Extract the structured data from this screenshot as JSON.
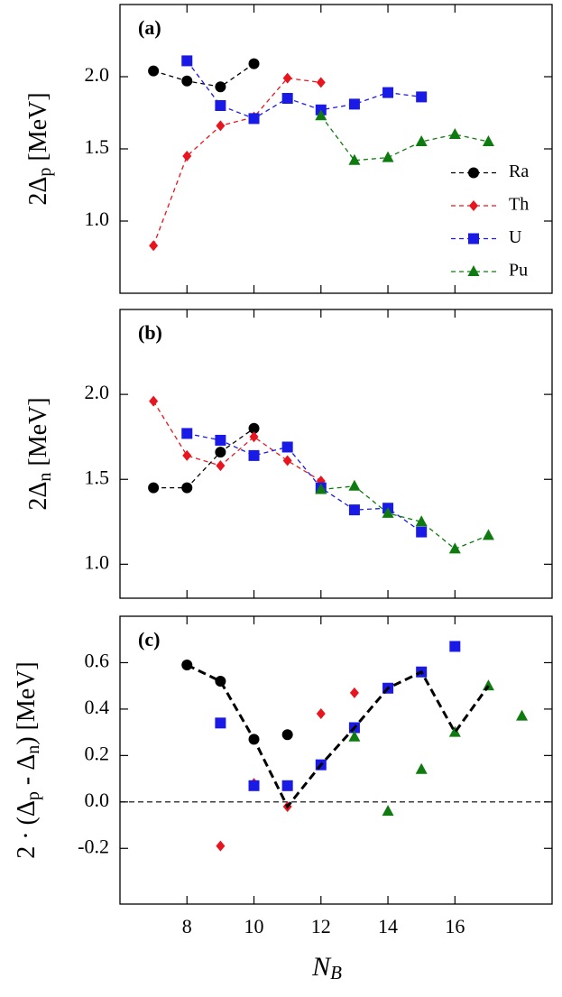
{
  "chart_data": [
    {
      "type": "line",
      "label": "(a)",
      "ylabel": [
        "2Δ",
        "p",
        " [MeV]"
      ],
      "xlim": [
        6,
        18.9
      ],
      "xticks": [
        8,
        10,
        12,
        14,
        16
      ],
      "tick_labels": false,
      "ylim": [
        0.5,
        2.5
      ],
      "yticks": [
        {
          "value": 1,
          "label": "1.0"
        },
        1.5,
        {
          "value": 2,
          "label": "2.0"
        }
      ],
      "legend": "lower right",
      "series": [
        {
          "name": "Ra",
          "color": "#000000",
          "marker": "circle",
          "line": "dashed",
          "x": [
            7,
            8,
            9,
            10
          ],
          "values": [
            2.04,
            1.97,
            1.93,
            2.09
          ]
        },
        {
          "name": "Th",
          "color": "#e8141e",
          "marker": "diamond",
          "line": "dashed",
          "x": [
            7,
            8,
            9,
            10,
            11,
            12
          ],
          "values": [
            0.83,
            1.45,
            1.66,
            1.72,
            1.99,
            1.96
          ]
        },
        {
          "name": "U",
          "color": "#1a1ae6",
          "marker": "square",
          "line": "dashed",
          "x": [
            8,
            9,
            10,
            11,
            12,
            13,
            14,
            15
          ],
          "values": [
            2.11,
            1.8,
            1.71,
            1.85,
            1.77,
            1.81,
            1.89,
            1.86
          ]
        },
        {
          "name": "Pu",
          "color": "#0f7a0f",
          "marker": "triangle",
          "line": "dashed",
          "x": [
            12,
            13,
            14,
            15,
            16,
            17
          ],
          "values": [
            1.73,
            1.42,
            1.44,
            1.55,
            1.6,
            1.55
          ]
        }
      ]
    },
    {
      "type": "line",
      "label": "(b)",
      "ylabel": [
        "2Δ",
        "n",
        " [MeV]"
      ],
      "xlim": [
        6,
        18.9
      ],
      "xticks": [
        8,
        10,
        12,
        14,
        16
      ],
      "tick_labels": false,
      "ylim": [
        0.8,
        2.5
      ],
      "yticks": [
        {
          "value": 1,
          "label": "1.0"
        },
        1.5,
        {
          "value": 2,
          "label": "2.0"
        }
      ],
      "series": [
        {
          "color": "#000000",
          "marker": "circle",
          "line": "dashed",
          "x": [
            7,
            8,
            9,
            10
          ],
          "values": [
            1.45,
            1.45,
            1.66,
            1.8
          ]
        },
        {
          "color": "#e8141e",
          "marker": "diamond",
          "line": "dashed",
          "x": [
            7,
            8,
            9,
            10,
            11,
            12
          ],
          "values": [
            1.96,
            1.64,
            1.58,
            1.75,
            1.61,
            1.49
          ]
        },
        {
          "color": "#1a1ae6",
          "marker": "square",
          "line": "dashed",
          "x": [
            8,
            9,
            10,
            11,
            12,
            13,
            14,
            15
          ],
          "values": [
            1.77,
            1.73,
            1.64,
            1.69,
            1.45,
            1.32,
            1.33,
            1.19
          ]
        },
        {
          "color": "#0f7a0f",
          "marker": "triangle",
          "line": "dashed",
          "x": [
            12,
            13,
            14,
            15,
            16,
            17
          ],
          "values": [
            1.44,
            1.46,
            1.3,
            1.25,
            1.09,
            1.17
          ]
        }
      ]
    },
    {
      "type": "scatter",
      "label": "(c)",
      "ylabel": [
        "2 · (Δ",
        "p",
        " - Δ",
        "n",
        ") [MeV]"
      ],
      "xlabel": [
        "N",
        "B"
      ],
      "xlim": [
        6,
        18.9
      ],
      "xticks": [
        8,
        10,
        12,
        14,
        16
      ],
      "tick_labels": true,
      "ylim": [
        -0.44,
        0.8
      ],
      "yticks": [
        -0.2,
        {
          "value": 0,
          "label": "0.0"
        },
        0.2,
        0.4,
        0.6
      ],
      "hline": 0,
      "series": [
        {
          "color": "#000000",
          "marker": "circle",
          "line": "none",
          "x": [
            8,
            9,
            10,
            11
          ],
          "values": [
            0.59,
            0.52,
            0.27,
            0.29
          ]
        },
        {
          "color": "#e8141e",
          "marker": "diamond",
          "line": "none",
          "x": [
            9,
            10,
            11,
            12,
            13
          ],
          "values": [
            -0.19,
            0.08,
            -0.02,
            0.38,
            0.47
          ]
        },
        {
          "color": "#1a1ae6",
          "marker": "square",
          "line": "none",
          "x": [
            9,
            10,
            11,
            12,
            13,
            14,
            15,
            16
          ],
          "values": [
            0.34,
            0.07,
            0.07,
            0.16,
            0.32,
            0.49,
            0.56,
            0.67
          ]
        },
        {
          "color": "#0f7a0f",
          "marker": "triangle",
          "line": "none",
          "x": [
            13,
            14,
            15,
            16,
            17,
            18
          ],
          "values": [
            0.28,
            -0.04,
            0.14,
            0.3,
            0.5,
            0.37
          ]
        },
        {
          "color": "#000000",
          "marker": "none",
          "line": "bold-dashed",
          "x": [
            8,
            9,
            10,
            11,
            12,
            13,
            14,
            15,
            16,
            17
          ],
          "values": [
            0.59,
            0.52,
            0.27,
            -0.02,
            0.16,
            0.32,
            0.49,
            0.56,
            0.3,
            0.5
          ]
        }
      ]
    }
  ]
}
